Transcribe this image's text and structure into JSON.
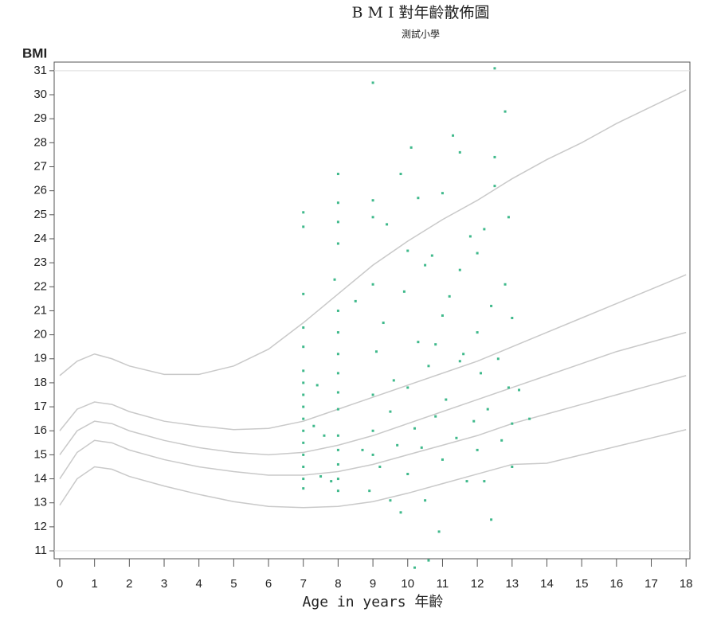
{
  "chart_data": {
    "type": "scatter",
    "title": "B M I 對年齡散佈圖",
    "subtitle": "測試小學",
    "y_label": "BMI",
    "x_label": "Age in years 年齡",
    "xlim": [
      -0.16,
      18.11
    ],
    "ylim": [
      10.67,
      31.36
    ],
    "xticks": [
      0,
      1,
      2,
      3,
      4,
      5,
      6,
      7,
      8,
      9,
      10,
      11,
      12,
      13,
      14,
      15,
      16,
      17,
      18
    ],
    "yticks": [
      11,
      12,
      13,
      14,
      15,
      16,
      17,
      18,
      19,
      20,
      21,
      22,
      23,
      24,
      25,
      26,
      27,
      28,
      29,
      30,
      31
    ],
    "color": "#3fb98b",
    "x": [
      7,
      7,
      7,
      7,
      7,
      7,
      7,
      7,
      7,
      7,
      7,
      7,
      7,
      7,
      7,
      7,
      7.3,
      7.4,
      7.5,
      7.6,
      7.8,
      8,
      8,
      8,
      8,
      8,
      8,
      8,
      8,
      8,
      8,
      8,
      8,
      8,
      8,
      8,
      7.9,
      8.5,
      8.7,
      8.9,
      9,
      9,
      9,
      9,
      9,
      9,
      9,
      9.1,
      9.2,
      9.3,
      9.4,
      9.5,
      9.6,
      9.7,
      9.8,
      9.8,
      9.9,
      10,
      10,
      10,
      10.1,
      10.2,
      10.3,
      10.3,
      10.4,
      10.5,
      10.5,
      10.6,
      10.7,
      10.8,
      10.9,
      11,
      11,
      11,
      11.1,
      11.2,
      11.3,
      11.4,
      11.5,
      11.5,
      11.6,
      11.7,
      11.8,
      11.9,
      12,
      12,
      12,
      12.1,
      12.2,
      12.3,
      12.4,
      12.4,
      12.5,
      12.5,
      12.5,
      12.6,
      12.7,
      12.8,
      12.8,
      12.9,
      12.9,
      13,
      13,
      13,
      13.2,
      13.5,
      10.2,
      10.6,
      11.5,
      10.8,
      12.2,
      9.5
    ],
    "values": [
      13.6,
      14,
      14.5,
      15,
      15.5,
      16,
      16.5,
      17,
      17.5,
      18,
      18.5,
      19.5,
      20.3,
      21.7,
      24.5,
      25.1,
      16.2,
      17.9,
      14.1,
      15.8,
      13.9,
      13.5,
      14,
      14.6,
      15.2,
      15.8,
      16.9,
      17.6,
      18.4,
      19.2,
      20.1,
      21,
      23.8,
      24.7,
      25.5,
      26.7,
      22.3,
      21.4,
      15.2,
      13.5,
      17.5,
      16,
      15,
      22.1,
      24.9,
      25.6,
      30.5,
      19.3,
      14.5,
      20.5,
      24.6,
      16.8,
      18.1,
      15.4,
      26.7,
      12.6,
      21.8,
      23.5,
      14.2,
      17.8,
      27.8,
      16.1,
      19.7,
      25.7,
      15.3,
      22.9,
      13.1,
      18.7,
      23.3,
      16.6,
      11.8,
      20.8,
      14.8,
      25.9,
      17.3,
      21.6,
      28.3,
      15.7,
      22.7,
      27.6,
      19.2,
      13.9,
      24.1,
      16.4,
      20.1,
      15.2,
      23.4,
      18.4,
      24.4,
      16.9,
      21.2,
      12.3,
      27.4,
      26.2,
      31.1,
      19,
      15.6,
      22.1,
      29.3,
      17.8,
      24.9,
      14.5,
      20.7,
      16.3,
      17.7,
      16.5,
      10.3,
      10.6,
      18.9,
      19.6,
      13.9,
      13.1
    ],
    "curves": {
      "color": "#c9c9c9",
      "x": [
        0,
        0.5,
        1,
        1.5,
        2,
        3,
        4,
        5,
        6,
        7,
        8,
        9,
        10,
        11,
        12,
        13,
        14,
        15,
        16,
        17,
        18
      ],
      "series": [
        {
          "values": [
            18.3,
            18.9,
            19.2,
            19,
            18.7,
            18.35,
            18.35,
            18.7,
            19.4,
            20.5,
            21.7,
            22.9,
            23.9,
            24.8,
            25.6,
            26.5,
            27.3,
            28,
            28.8,
            29.5,
            30.2
          ]
        },
        {
          "values": [
            16,
            16.9,
            17.2,
            17.1,
            16.8,
            16.4,
            16.2,
            16.05,
            16.1,
            16.4,
            16.9,
            17.4,
            17.9,
            18.4,
            18.9,
            19.5,
            20.1,
            20.7,
            21.3,
            21.9,
            22.5
          ]
        },
        {
          "values": [
            15,
            16,
            16.4,
            16.3,
            16,
            15.6,
            15.3,
            15.1,
            15,
            15.1,
            15.4,
            15.8,
            16.3,
            16.8,
            17.3,
            17.8,
            18.3,
            18.8,
            19.3,
            19.7,
            20.1
          ]
        },
        {
          "values": [
            14,
            15.1,
            15.6,
            15.5,
            15.2,
            14.8,
            14.5,
            14.3,
            14.15,
            14.15,
            14.3,
            14.6,
            15,
            15.4,
            15.8,
            16.3,
            16.7,
            17.1,
            17.5,
            17.9,
            18.3
          ]
        },
        {
          "values": [
            12.9,
            14,
            14.5,
            14.4,
            14.1,
            13.7,
            13.35,
            13.05,
            12.85,
            12.8,
            12.85,
            13.05,
            13.4,
            13.8,
            14.2,
            14.6,
            14.65,
            15,
            15.35,
            15.7,
            16.05
          ]
        }
      ]
    }
  }
}
